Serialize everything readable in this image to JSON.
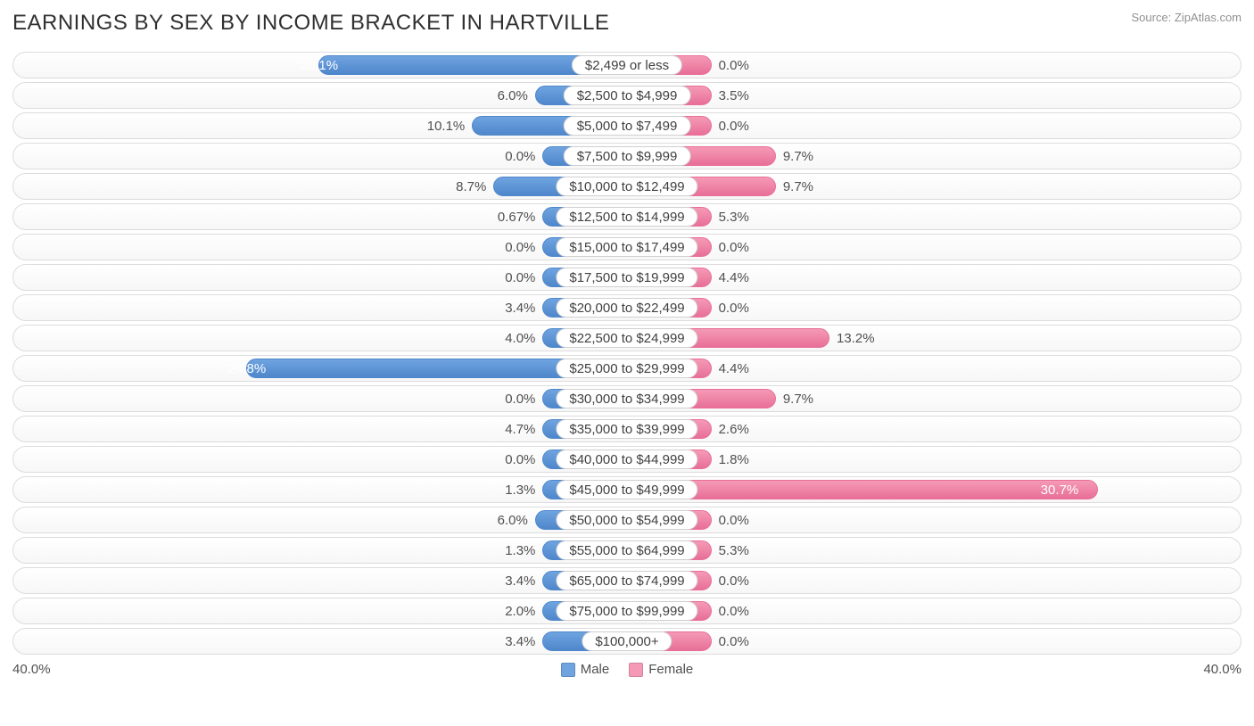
{
  "header": {
    "title": "EARNINGS BY SEX BY INCOME BRACKET IN HARTVILLE",
    "source": "Source: ZipAtlas.com"
  },
  "chart": {
    "type": "diverging-bar",
    "axis_max_pct": 40.0,
    "min_bar_pct": 5.5,
    "axis_left_label": "40.0%",
    "axis_right_label": "40.0%",
    "colors": {
      "male_fill": "#6fa4e0",
      "male_border": "#4f87cc",
      "female_fill": "#f59ab6",
      "female_border": "#e86f98",
      "track_border": "#dcdcdc",
      "text": "#505050",
      "inside_text": "#ffffff"
    },
    "legend": [
      {
        "label": "Male",
        "color": "#6fa4e0"
      },
      {
        "label": "Female",
        "color": "#f59ab6"
      }
    ],
    "rows": [
      {
        "bracket": "$2,499 or less",
        "male": 20.1,
        "female": 0.0
      },
      {
        "bracket": "$2,500 to $4,999",
        "male": 6.0,
        "female": 3.5
      },
      {
        "bracket": "$5,000 to $7,499",
        "male": 10.1,
        "female": 0.0
      },
      {
        "bracket": "$7,500 to $9,999",
        "male": 0.0,
        "female": 9.7
      },
      {
        "bracket": "$10,000 to $12,499",
        "male": 8.7,
        "female": 9.7
      },
      {
        "bracket": "$12,500 to $14,999",
        "male": 0.67,
        "female": 5.3
      },
      {
        "bracket": "$15,000 to $17,499",
        "male": 0.0,
        "female": 0.0
      },
      {
        "bracket": "$17,500 to $19,999",
        "male": 0.0,
        "female": 4.4
      },
      {
        "bracket": "$20,000 to $22,499",
        "male": 3.4,
        "female": 0.0
      },
      {
        "bracket": "$22,500 to $24,999",
        "male": 4.0,
        "female": 13.2
      },
      {
        "bracket": "$25,000 to $29,999",
        "male": 24.8,
        "female": 4.4
      },
      {
        "bracket": "$30,000 to $34,999",
        "male": 0.0,
        "female": 9.7
      },
      {
        "bracket": "$35,000 to $39,999",
        "male": 4.7,
        "female": 2.6
      },
      {
        "bracket": "$40,000 to $44,999",
        "male": 0.0,
        "female": 1.8
      },
      {
        "bracket": "$45,000 to $49,999",
        "male": 1.3,
        "female": 30.7
      },
      {
        "bracket": "$50,000 to $54,999",
        "male": 6.0,
        "female": 0.0
      },
      {
        "bracket": "$55,000 to $64,999",
        "male": 1.3,
        "female": 5.3
      },
      {
        "bracket": "$65,000 to $74,999",
        "male": 3.4,
        "female": 0.0
      },
      {
        "bracket": "$75,000 to $99,999",
        "male": 2.0,
        "female": 0.0
      },
      {
        "bracket": "$100,000+",
        "male": 3.4,
        "female": 0.0
      }
    ]
  }
}
